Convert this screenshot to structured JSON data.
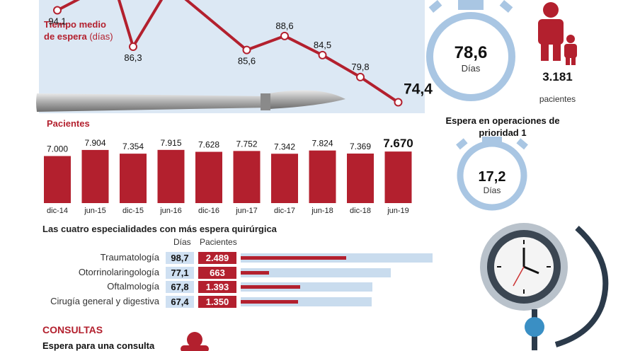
{
  "header": {
    "title": "Tiempo medio",
    "title2": "de espera",
    "unit": "(días)"
  },
  "chart_data": [
    {
      "type": "line",
      "title": "Tiempo medio de espera (días)",
      "categories": [
        "dic-14",
        "jun-15",
        "dic-15",
        "jun-16",
        "dic-16",
        "jun-17",
        "dic-17",
        "jun-18",
        "dic-18",
        "jun-19"
      ],
      "values": [
        94.1,
        null,
        86.3,
        null,
        null,
        85.6,
        88.6,
        84.5,
        79.8,
        74.4
      ],
      "labels": [
        "94,1",
        "",
        "86,3",
        "",
        "",
        "85,6",
        "88,6",
        "84,5",
        "79,8",
        "74,4"
      ],
      "ylim": [
        70,
        100
      ]
    },
    {
      "type": "bar",
      "title": "Pacientes",
      "categories": [
        "dic-14",
        "jun-15",
        "dic-15",
        "jun-16",
        "dic-16",
        "jun-17",
        "dic-17",
        "jun-18",
        "dic-18",
        "jun-19"
      ],
      "values": [
        7000,
        7904,
        7354,
        7915,
        7628,
        7752,
        7342,
        7824,
        7369,
        7670
      ],
      "labels": [
        "7.000",
        "7.904",
        "7.354",
        "7.915",
        "7.628",
        "7.752",
        "7.342",
        "7.824",
        "7.369",
        "7.670"
      ],
      "ylim": [
        0,
        8000
      ]
    },
    {
      "type": "table",
      "title": "Las cuatro especialidades con más espera quirúrgica",
      "columns": [
        "Días",
        "Pacientes"
      ],
      "rows": [
        {
          "name": "Traumatología",
          "dias": "98,7",
          "pacientes": "2.489",
          "pacientes_value": 2489
        },
        {
          "name": "Otorrinolaringología",
          "dias": "77,1",
          "pacientes": "663",
          "pacientes_value": 663
        },
        {
          "name": "Oftalmología",
          "dias": "67,8",
          "pacientes": "1.393",
          "pacientes_value": 1393
        },
        {
          "name": "Cirugía general y digestiva",
          "dias": "67,4",
          "pacientes": "1.350",
          "pacientes_value": 1350
        }
      ],
      "dias_max": 100,
      "pacientes_max": 2500
    }
  ],
  "summary": {
    "avg_wait": "78,6",
    "avg_wait_unit": "Días",
    "patients": "3.181",
    "patients_word": "pacientes",
    "priority_label": "Espera en operaciones de prioridad 1",
    "priority_wait": "17,2",
    "priority_unit": "Días"
  },
  "consultas": {
    "title": "CONSULTAS",
    "subtitle": "Espera para una consulta"
  },
  "colors": {
    "accent": "#b3202e",
    "light_blue": "#dce8f4",
    "ring": "#a9c6e3"
  }
}
